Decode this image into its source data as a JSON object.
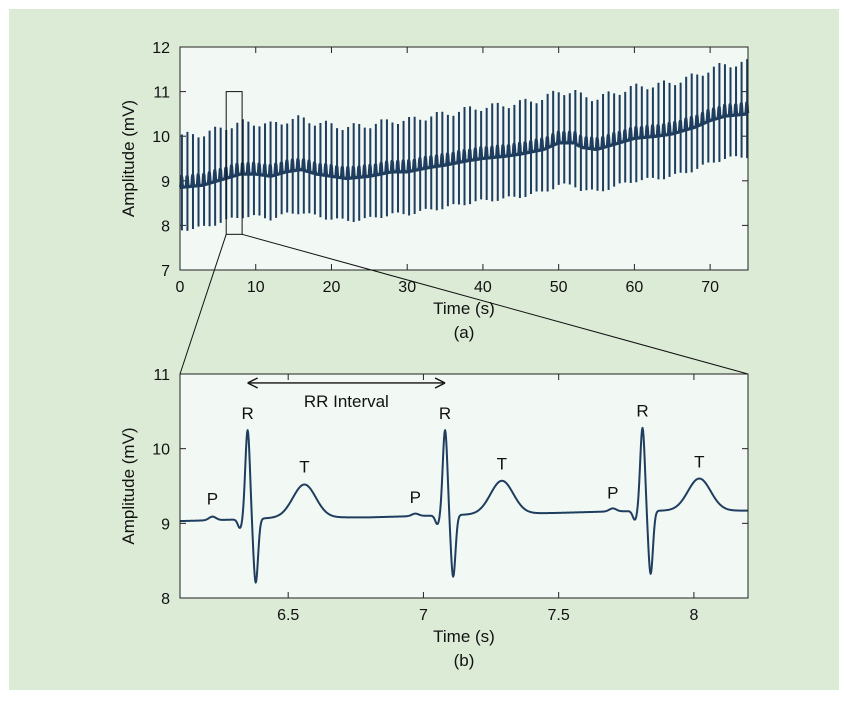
{
  "colors": {
    "background": "#dcebd6",
    "plot_area": "#f2f8f3",
    "signal": "#1f3d5f"
  },
  "chart_data": [
    {
      "type": "line",
      "panel_label": "(a)",
      "title": "",
      "xlabel": "Time (s)",
      "ylabel": "Amplitude (mV)",
      "xlim": [
        0,
        75
      ],
      "ylim": [
        7,
        12
      ],
      "xticks": [
        0,
        10,
        20,
        30,
        40,
        50,
        60,
        70
      ],
      "yticks": [
        7,
        8,
        9,
        10,
        11,
        12
      ],
      "grid": false,
      "series": [
        {
          "heart_rate_bpm": 82,
          "baseline": {
            "x": [
              0,
              3,
              6,
              8,
              10,
              12,
              14,
              16,
              18,
              20,
              22,
              25,
              28,
              30,
              33,
              35,
              38,
              40,
              43,
              45,
              48,
              50,
              52,
              53,
              55,
              58,
              60,
              63,
              65,
              68,
              70,
              72,
              75
            ],
            "y": [
              8.85,
              8.9,
              9.05,
              9.15,
              9.15,
              9.1,
              9.2,
              9.25,
              9.15,
              9.1,
              9.05,
              9.1,
              9.2,
              9.2,
              9.3,
              9.35,
              9.45,
              9.5,
              9.55,
              9.6,
              9.7,
              9.85,
              9.85,
              9.75,
              9.7,
              9.85,
              9.95,
              10.0,
              10.05,
              10.2,
              10.35,
              10.45,
              10.5
            ]
          },
          "r_peak_offset_mv": 1.15,
          "s_trough_offset_mv": -0.95,
          "t_wave_offset_mv": 0.45,
          "t_wave_delay_s": 0.21,
          "p_wave_offset_mv": 0.06,
          "p_wave_lead_s": 0.13
        }
      ],
      "zoom_box": {
        "x_range": [
          6.1,
          8.2
        ],
        "y_range": [
          7.8,
          11.0
        ]
      }
    },
    {
      "type": "line",
      "panel_label": "(b)",
      "title": "",
      "xlabel": "Time (s)",
      "ylabel": "Amplitude (mV)",
      "xlim": [
        6.1,
        8.2
      ],
      "ylim": [
        8,
        11
      ],
      "xticks": [
        6.5,
        7,
        7.5,
        8
      ],
      "yticks": [
        8,
        9,
        10,
        11
      ],
      "grid": false,
      "series": [
        {
          "baseline": {
            "x": [
              6.1,
              6.3,
              6.5,
              6.8,
              7.0,
              7.2,
              7.5,
              7.7,
              7.9,
              8.2
            ],
            "y": [
              9.03,
              9.05,
              9.08,
              9.08,
              9.1,
              9.12,
              9.14,
              9.16,
              9.17,
              9.17
            ]
          },
          "beats": [
            {
              "r_time": 6.35,
              "r_value": 10.25,
              "s_value": 8.2,
              "t_time": 6.56,
              "t_value": 9.52,
              "p_time": 6.22,
              "p_value": 9.09
            },
            {
              "r_time": 7.08,
              "r_value": 10.25,
              "s_value": 8.28,
              "t_time": 7.29,
              "t_value": 9.57,
              "p_time": 6.97,
              "p_value": 9.13
            },
            {
              "r_time": 7.81,
              "r_value": 10.28,
              "s_value": 8.32,
              "t_time": 8.02,
              "t_value": 9.6,
              "p_time": 7.7,
              "p_value": 9.2
            }
          ]
        }
      ],
      "annotations": {
        "labels": [
          {
            "text": "P",
            "x": 6.22,
            "y": 9.25
          },
          {
            "text": "R",
            "x": 6.35,
            "y": 10.4
          },
          {
            "text": "T",
            "x": 6.56,
            "y": 9.68
          },
          {
            "text": "P",
            "x": 6.97,
            "y": 9.27
          },
          {
            "text": "R",
            "x": 7.08,
            "y": 10.4
          },
          {
            "text": "T",
            "x": 7.29,
            "y": 9.72
          },
          {
            "text": "P",
            "x": 7.7,
            "y": 9.33
          },
          {
            "text": "R",
            "x": 7.81,
            "y": 10.43
          },
          {
            "text": "T",
            "x": 8.02,
            "y": 9.75
          }
        ],
        "rr_interval": {
          "text": "RR Interval",
          "x_start": 6.35,
          "x_end": 7.08,
          "y": 10.88,
          "text_y": 10.56
        }
      }
    }
  ]
}
